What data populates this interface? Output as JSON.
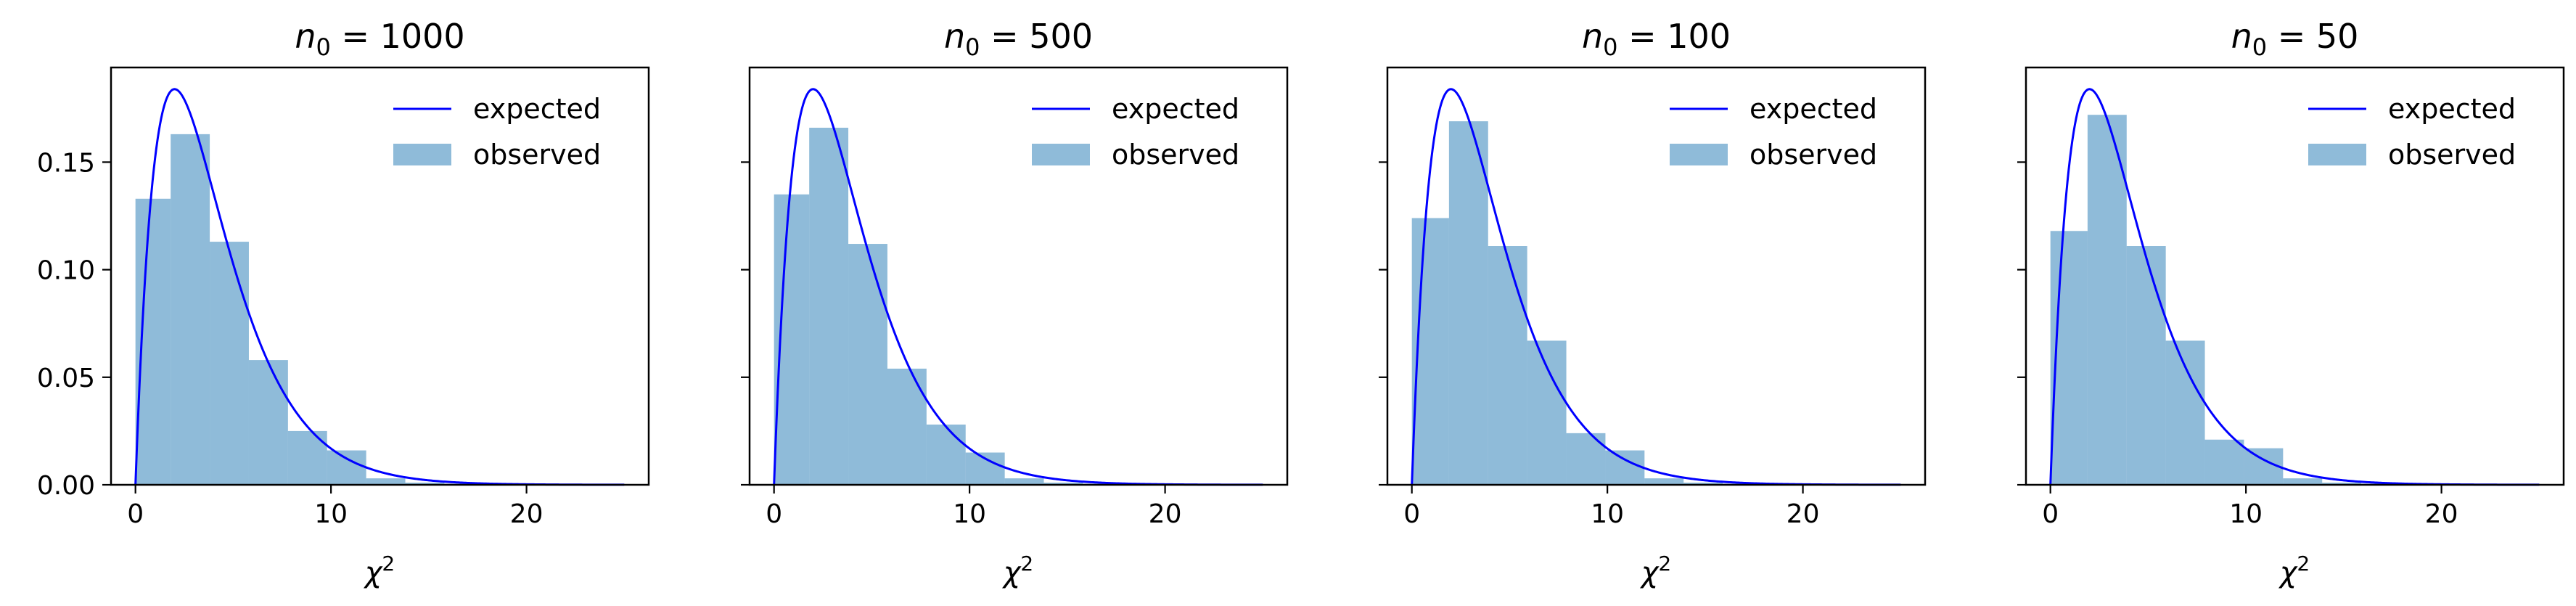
{
  "chart_data": [
    {
      "type": "bar",
      "title": {
        "main": "n",
        "sub": "0",
        "rest": " = 1000"
      },
      "xlabel": {
        "main": "χ",
        "sup": "2"
      },
      "ylabel": "",
      "xlim": [
        -1.25,
        26.25
      ],
      "ylim": [
        0,
        0.194
      ],
      "xticks": [
        0,
        10,
        20
      ],
      "yticks": [
        0.0,
        0.05,
        0.1,
        0.15
      ],
      "legend": {
        "position": "top-right",
        "entries": [
          "expected",
          "observed"
        ]
      },
      "series": [
        {
          "name": "expected",
          "kind": "line",
          "curve": "chi2",
          "df": 4,
          "x_range": [
            0,
            25
          ],
          "color": "#0000ff"
        },
        {
          "name": "observed",
          "kind": "histogram",
          "color": "#1f77b4",
          "alpha": 0.5,
          "bin_edges": [
            0,
            1.8,
            3.8,
            5.8,
            7.8,
            9.8,
            11.8,
            13.8,
            15.8,
            17.8,
            19.8
          ],
          "values": [
            0.133,
            0.163,
            0.113,
            0.058,
            0.025,
            0.016,
            0.003,
            0.001,
            0.0005,
            0.0002
          ]
        }
      ]
    },
    {
      "type": "bar",
      "title": {
        "main": "n",
        "sub": "0",
        "rest": " = 500"
      },
      "xlabel": {
        "main": "χ",
        "sup": "2"
      },
      "ylabel": "",
      "xlim": [
        -1.25,
        26.25
      ],
      "ylim": [
        0,
        0.194
      ],
      "xticks": [
        0,
        10,
        20
      ],
      "yticks": [
        0.0,
        0.05,
        0.1,
        0.15
      ],
      "legend": {
        "position": "top-right",
        "entries": [
          "expected",
          "observed"
        ]
      },
      "series": [
        {
          "name": "expected",
          "kind": "line",
          "curve": "chi2",
          "df": 4,
          "x_range": [
            0,
            25
          ],
          "color": "#0000ff"
        },
        {
          "name": "observed",
          "kind": "histogram",
          "color": "#1f77b4",
          "alpha": 0.5,
          "bin_edges": [
            0,
            1.8,
            3.8,
            5.8,
            7.8,
            9.8,
            11.8,
            13.8,
            15.8,
            17.8,
            19.8
          ],
          "values": [
            0.135,
            0.166,
            0.112,
            0.054,
            0.028,
            0.015,
            0.003,
            0.001,
            0.0005,
            0.0002
          ]
        }
      ]
    },
    {
      "type": "bar",
      "title": {
        "main": "n",
        "sub": "0",
        "rest": " = 100"
      },
      "xlabel": {
        "main": "χ",
        "sup": "2"
      },
      "ylabel": "",
      "xlim": [
        -1.25,
        26.25
      ],
      "ylim": [
        0,
        0.194
      ],
      "xticks": [
        0,
        10,
        20
      ],
      "yticks": [
        0.0,
        0.05,
        0.1,
        0.15
      ],
      "legend": {
        "position": "top-right",
        "entries": [
          "expected",
          "observed"
        ]
      },
      "series": [
        {
          "name": "expected",
          "kind": "line",
          "curve": "chi2",
          "df": 4,
          "x_range": [
            0,
            25
          ],
          "color": "#0000ff"
        },
        {
          "name": "observed",
          "kind": "histogram",
          "color": "#1f77b4",
          "alpha": 0.5,
          "bin_edges": [
            0,
            1.9,
            3.9,
            5.9,
            7.9,
            9.9,
            11.9,
            13.9,
            15.9,
            17.9,
            19.9
          ],
          "values": [
            0.124,
            0.169,
            0.111,
            0.067,
            0.024,
            0.016,
            0.003,
            0.001,
            0.0005,
            0.0002
          ]
        }
      ]
    },
    {
      "type": "bar",
      "title": {
        "main": "n",
        "sub": "0",
        "rest": " = 50"
      },
      "xlabel": {
        "main": "χ",
        "sup": "2"
      },
      "ylabel": "",
      "xlim": [
        -1.25,
        26.25
      ],
      "ylim": [
        0,
        0.194
      ],
      "xticks": [
        0,
        10,
        20
      ],
      "yticks": [
        0.0,
        0.05,
        0.1,
        0.15
      ],
      "legend": {
        "position": "top-right",
        "entries": [
          "expected",
          "observed"
        ]
      },
      "series": [
        {
          "name": "expected",
          "kind": "line",
          "curve": "chi2",
          "df": 4,
          "x_range": [
            0,
            25
          ],
          "color": "#0000ff"
        },
        {
          "name": "observed",
          "kind": "histogram",
          "color": "#1f77b4",
          "alpha": 0.5,
          "bin_edges": [
            0,
            1.9,
            3.9,
            5.9,
            7.9,
            9.9,
            11.9,
            13.9,
            15.9,
            17.9,
            19.9
          ],
          "values": [
            0.118,
            0.172,
            0.111,
            0.067,
            0.021,
            0.017,
            0.003,
            0.001,
            0.0005,
            0.0002
          ]
        }
      ]
    }
  ]
}
